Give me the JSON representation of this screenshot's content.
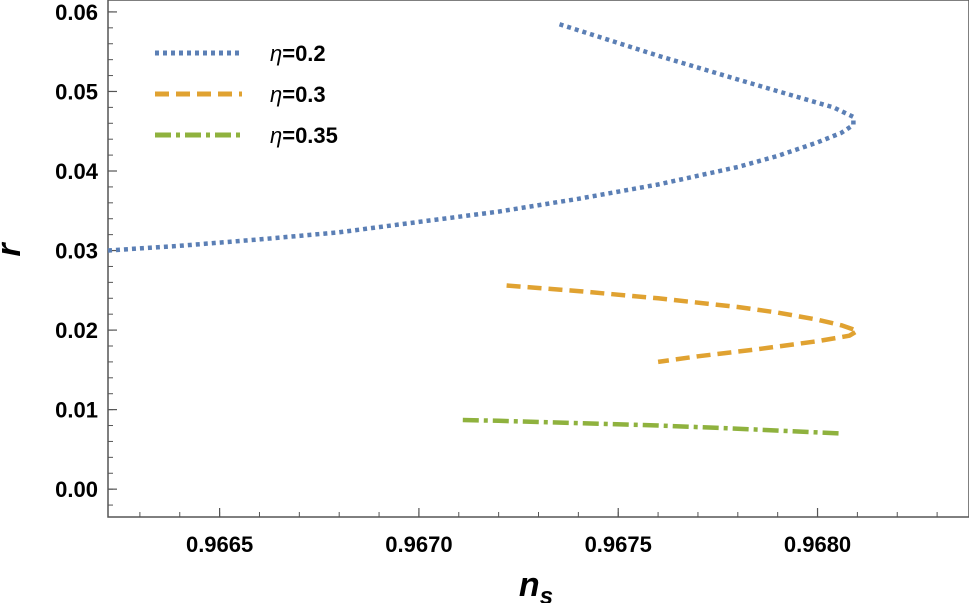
{
  "chart_data": {
    "type": "line",
    "xlabel": "n",
    "xlabel_sub": "s",
    "ylabel": "r",
    "xlim": [
      0.96622,
      0.96838
    ],
    "ylim": [
      -0.0035,
      0.0615
    ],
    "xticks": [
      0.9665,
      0.967,
      0.9675,
      0.968
    ],
    "xtick_labels": [
      "0.9665",
      "0.9670",
      "0.9675",
      "0.9680"
    ],
    "yticks": [
      0.0,
      0.01,
      0.02,
      0.03,
      0.04,
      0.05,
      0.06
    ],
    "ytick_labels": [
      "0.00",
      "0.01",
      "0.02",
      "0.03",
      "0.04",
      "0.05",
      "0.06"
    ],
    "grid": false,
    "legend_position": "top-left",
    "series": [
      {
        "name": "η=0.2",
        "legend_symbol": "η",
        "legend_value": "=0.2",
        "color": "#5b7fb5",
        "style": "dotted",
        "x": [
          0.96622,
          0.9664,
          0.9666,
          0.9668,
          0.967,
          0.9672,
          0.9674,
          0.9676,
          0.9678,
          0.9679,
          0.968,
          0.96806,
          0.96809,
          0.96809,
          0.96804,
          0.96795,
          0.9678,
          0.9676,
          0.96735
        ],
        "y": [
          0.03,
          0.0306,
          0.0314,
          0.0323,
          0.0336,
          0.0349,
          0.0365,
          0.0383,
          0.0405,
          0.0419,
          0.0436,
          0.0448,
          0.0458,
          0.0468,
          0.048,
          0.0493,
          0.0515,
          0.0545,
          0.0585
        ]
      },
      {
        "name": "η=0.3",
        "legend_symbol": "η",
        "legend_value": "=0.3",
        "color": "#e0a231",
        "style": "dashed",
        "x": [
          0.96722,
          0.9674,
          0.9676,
          0.9678,
          0.9679,
          0.968,
          0.96806,
          0.9681,
          0.96808,
          0.968,
          0.96785,
          0.9677,
          0.9676
        ],
        "y": [
          0.0256,
          0.0249,
          0.024,
          0.0229,
          0.0222,
          0.0213,
          0.0206,
          0.0199,
          0.0193,
          0.0186,
          0.0176,
          0.0167,
          0.016
        ]
      },
      {
        "name": "η=0.35",
        "legend_symbol": "η",
        "legend_value": "=0.35",
        "color": "#8fb23e",
        "style": "dashdot",
        "x": [
          0.96711,
          0.9672,
          0.9674,
          0.9676,
          0.9678,
          0.96806
        ],
        "y": [
          0.0087,
          0.0086,
          0.0083,
          0.008,
          0.0076,
          0.007
        ]
      }
    ]
  }
}
